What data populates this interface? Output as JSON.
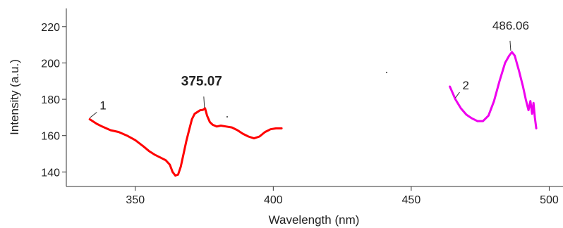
{
  "chart_data": {
    "type": "line",
    "title": "",
    "xlabel": "Wavelength (nm)",
    "ylabel": "Intensity (a.u.)",
    "xlim": [
      325,
      505
    ],
    "ylim": [
      132,
      230
    ],
    "xticks": [
      350,
      400,
      450,
      500
    ],
    "yticks": [
      140,
      160,
      180,
      200,
      220
    ],
    "grid": false,
    "legend": "none",
    "series": [
      {
        "label": "1",
        "color": "#ff0000",
        "x": [
          333.5,
          336,
          338,
          341,
          344,
          347,
          350,
          353,
          355,
          357,
          359,
          361,
          362.5,
          363.5,
          364.5,
          365.5,
          366.5,
          367.5,
          368.5,
          369.5,
          370.5,
          371.5,
          372.5,
          373.5,
          374.5,
          375.3,
          376,
          377,
          378,
          379.5,
          381,
          383,
          385,
          387,
          389,
          391,
          393,
          395,
          397,
          399,
          401,
          403
        ],
        "y": [
          169,
          166.5,
          165,
          163,
          162,
          160,
          157.5,
          154,
          151.5,
          149.5,
          148,
          146.5,
          144,
          140,
          138,
          138.5,
          143,
          150,
          157,
          163,
          169,
          172,
          173,
          174,
          174.2,
          175,
          171,
          167.5,
          166,
          165,
          165.5,
          165,
          164.5,
          163,
          161,
          159.5,
          158.5,
          159.5,
          162,
          163.5,
          164,
          164
        ]
      },
      {
        "label": "2",
        "color": "#ee00ee",
        "x": [
          464,
          466,
          468,
          470,
          472,
          474,
          476,
          478,
          480,
          482,
          484,
          485.5,
          486.5,
          487.5,
          489,
          490.5,
          491.5,
          492.5,
          493.2,
          493.8,
          494.3,
          494.8,
          495.3
        ],
        "y": [
          187,
          180,
          175,
          171.5,
          169.5,
          168,
          168,
          171,
          179,
          190,
          200,
          204,
          206,
          204,
          196,
          187,
          180,
          174,
          179,
          172,
          178,
          170,
          164
        ]
      }
    ],
    "annotations": [
      {
        "text": "375.07",
        "x": 375.07,
        "y": 174.5,
        "bold": true
      },
      {
        "text": "486.06",
        "x": 486.06,
        "y": 206,
        "bold": false
      },
      {
        "text": "1",
        "x": 333.5,
        "y": 169,
        "bold": false
      },
      {
        "text": "2",
        "x": 466,
        "y": 180,
        "bold": false
      }
    ]
  }
}
